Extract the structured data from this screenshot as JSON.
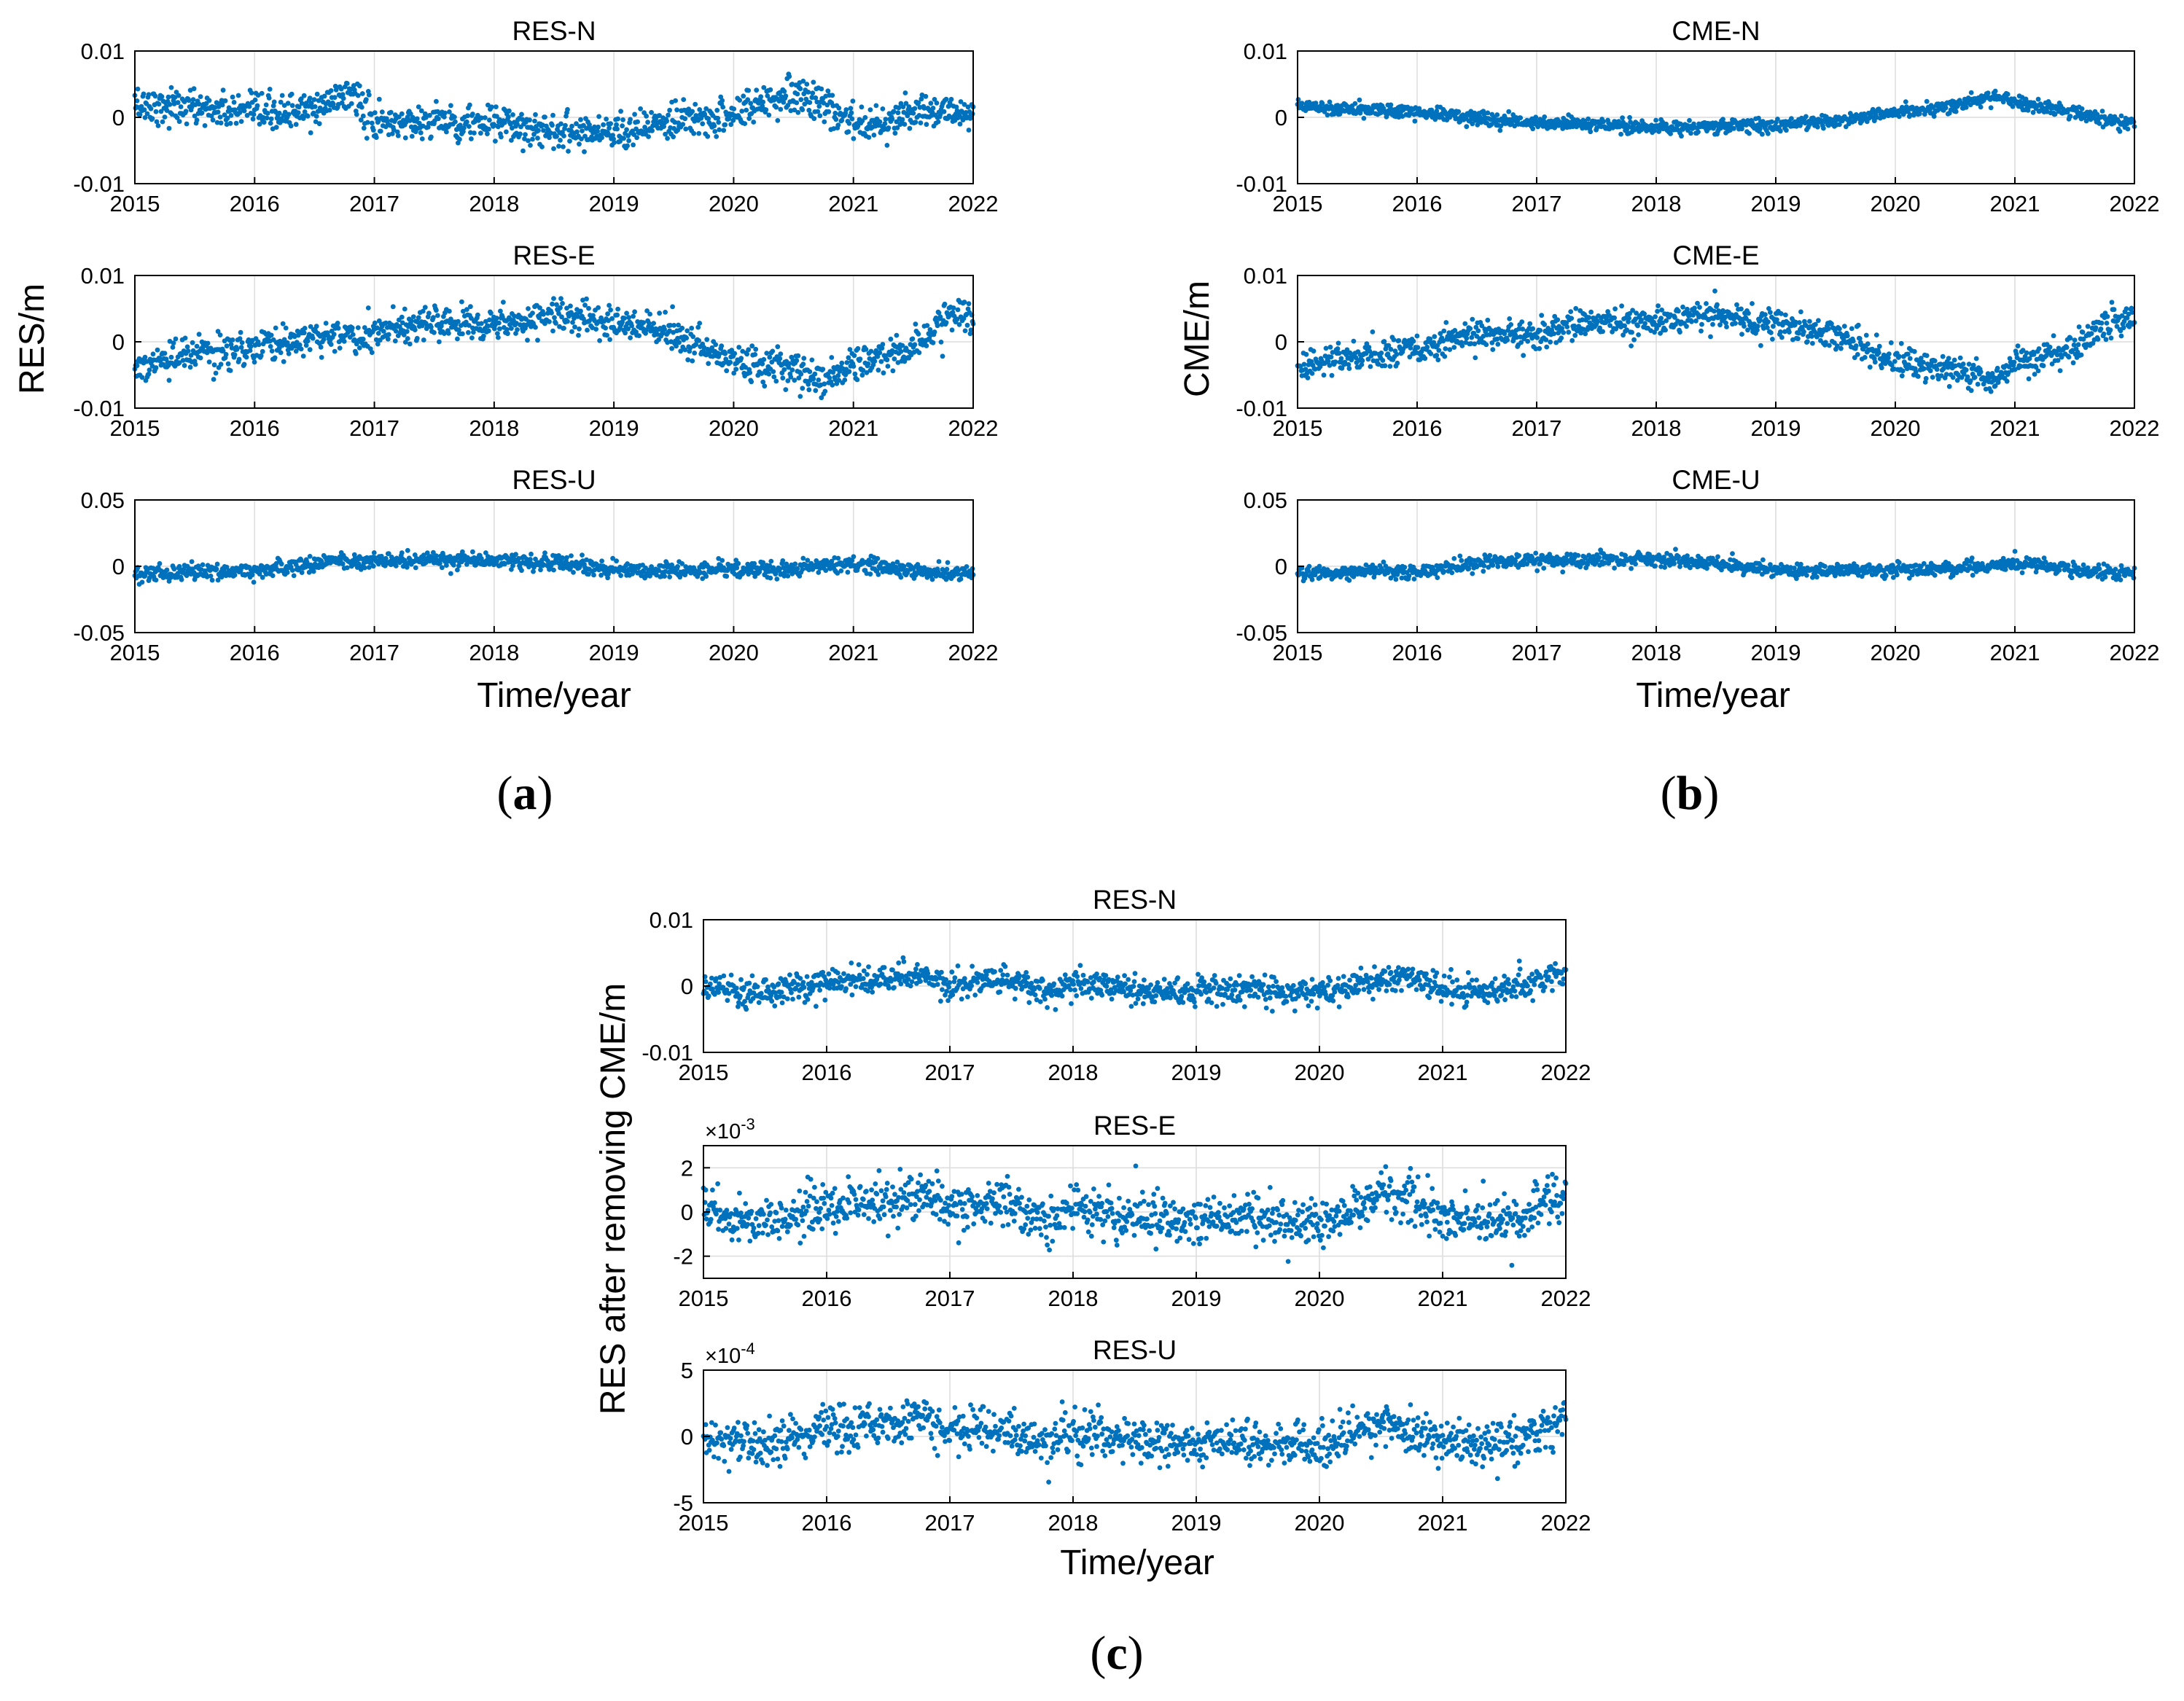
{
  "figure": {
    "panel_labels": {
      "a": {
        "open": "(",
        "letter": "a",
        "close": ")"
      },
      "b": {
        "open": "(",
        "letter": "b",
        "close": ")"
      },
      "c": {
        "open": "(",
        "letter": "c",
        "close": ")"
      }
    },
    "ylabels": {
      "a": "RES/m",
      "b": "CME/m",
      "c": "RES after removing CME/m"
    },
    "xlabel": "Time/year",
    "colors": {
      "points": "#0072BD",
      "grid": "#dcdcdc",
      "axis": "#000000"
    }
  },
  "chart_data": [
    {
      "panel": "a",
      "type": "scatter",
      "title": "RES-N",
      "xlim": [
        2015,
        2022
      ],
      "ylim": [
        -0.01,
        0.01
      ],
      "xticks": [
        "2015",
        "2016",
        "2017",
        "2018",
        "2019",
        "2020",
        "2021",
        "2022"
      ],
      "yticks": [
        "-0.01",
        "0",
        "0.01"
      ],
      "yexponent": "",
      "series": [
        {
          "trend": [
            [
              2015,
              0.002
            ],
            [
              2015.5,
              0.0015
            ],
            [
              2016,
              0.0005
            ],
            [
              2016.5,
              0.001
            ],
            [
              2016.8,
              0.004
            ],
            [
              2017,
              -0.001
            ],
            [
              2017.5,
              -0.0005
            ],
            [
              2018,
              -0.001
            ],
            [
              2018.5,
              -0.002
            ],
            [
              2019,
              -0.002
            ],
            [
              2019.5,
              -0.001
            ],
            [
              2020,
              0.0005
            ],
            [
              2020.5,
              0.004
            ],
            [
              2021,
              -0.001
            ],
            [
              2021.5,
              0.0005
            ],
            [
              2022,
              0.001
            ]
          ],
          "noise": 0.0018
        }
      ]
    },
    {
      "panel": "a",
      "type": "scatter",
      "title": "RES-E",
      "xlim": [
        2015,
        2022
      ],
      "ylim": [
        -0.01,
        0.01
      ],
      "xticks": [
        "2015",
        "2016",
        "2017",
        "2018",
        "2019",
        "2020",
        "2021",
        "2022"
      ],
      "yticks": [
        "-0.01",
        "0",
        "0.01"
      ],
      "yexponent": "",
      "series": [
        {
          "trend": [
            [
              2015,
              -0.004
            ],
            [
              2015.5,
              -0.002
            ],
            [
              2016,
              -0.001
            ],
            [
              2016.5,
              0.001
            ],
            [
              2017,
              0.001
            ],
            [
              2017.5,
              0.003
            ],
            [
              2018,
              0.003
            ],
            [
              2018.5,
              0.004
            ],
            [
              2019,
              0.003
            ],
            [
              2019.5,
              0.001
            ],
            [
              2020,
              -0.003
            ],
            [
              2020.5,
              -0.004
            ],
            [
              2020.8,
              -0.006
            ],
            [
              2021,
              -0.003
            ],
            [
              2021.5,
              -0.001
            ],
            [
              2021.8,
              0.004
            ],
            [
              2022,
              0.004
            ]
          ],
          "noise": 0.0017
        }
      ]
    },
    {
      "panel": "a",
      "type": "scatter",
      "title": "RES-U",
      "xlim": [
        2015,
        2022
      ],
      "ylim": [
        -0.05,
        0.05
      ],
      "xticks": [
        "2015",
        "2016",
        "2017",
        "2018",
        "2019",
        "2020",
        "2021",
        "2022"
      ],
      "yticks": [
        "-0.05",
        "0",
        "0.05"
      ],
      "yexponent": "",
      "series": [
        {
          "trend": [
            [
              2015,
              -0.005
            ],
            [
              2016,
              -0.004
            ],
            [
              2016.6,
              0.004
            ],
            [
              2017,
              0.004
            ],
            [
              2018,
              0.005
            ],
            [
              2018.5,
              0.002
            ],
            [
              2019,
              -0.003
            ],
            [
              2020,
              -0.003
            ],
            [
              2020.5,
              -0.002
            ],
            [
              2021,
              0.002
            ],
            [
              2021.6,
              -0.004
            ],
            [
              2022,
              -0.005
            ]
          ],
          "noise": 0.004
        }
      ]
    },
    {
      "panel": "b",
      "type": "scatter",
      "title": "CME-N",
      "xlim": [
        2015,
        2022
      ],
      "ylim": [
        -0.01,
        0.01
      ],
      "xticks": [
        "2015",
        "2016",
        "2017",
        "2018",
        "2019",
        "2020",
        "2021",
        "2022"
      ],
      "yticks": [
        "-0.01",
        "0",
        "0.01"
      ],
      "yexponent": "",
      "series": [
        {
          "trend": [
            [
              2015,
              0.0018
            ],
            [
              2016,
              0.0008
            ],
            [
              2017,
              -0.0008
            ],
            [
              2018,
              -0.0015
            ],
            [
              2019,
              -0.0012
            ],
            [
              2019.5,
              -0.0005
            ],
            [
              2020,
              0.0008
            ],
            [
              2020.5,
              0.0018
            ],
            [
              2020.8,
              0.003
            ],
            [
              2021.3,
              0.0015
            ],
            [
              2021.8,
              -0.0005
            ],
            [
              2022,
              -0.001
            ]
          ],
          "noise": 0.0007
        }
      ]
    },
    {
      "panel": "b",
      "type": "scatter",
      "title": "CME-E",
      "xlim": [
        2015,
        2022
      ],
      "ylim": [
        -0.01,
        0.01
      ],
      "xticks": [
        "2015",
        "2016",
        "2017",
        "2018",
        "2019",
        "2020",
        "2021",
        "2022"
      ],
      "yticks": [
        "-0.01",
        "0",
        "0.01"
      ],
      "yexponent": "",
      "series": [
        {
          "trend": [
            [
              2015,
              -0.004
            ],
            [
              2015.5,
              -0.002
            ],
            [
              2016,
              -0.001
            ],
            [
              2016.5,
              0.001
            ],
            [
              2017,
              0.001
            ],
            [
              2017.5,
              0.003
            ],
            [
              2018,
              0.003
            ],
            [
              2018.5,
              0.004
            ],
            [
              2019,
              0.003
            ],
            [
              2019.5,
              0.001
            ],
            [
              2020,
              -0.003
            ],
            [
              2020.5,
              -0.004
            ],
            [
              2020.8,
              -0.006
            ],
            [
              2021,
              -0.003
            ],
            [
              2021.5,
              -0.001
            ],
            [
              2021.8,
              0.003
            ],
            [
              2022,
              0.003
            ]
          ],
          "noise": 0.0015
        }
      ]
    },
    {
      "panel": "b",
      "type": "scatter",
      "title": "CME-U",
      "xlim": [
        2015,
        2022
      ],
      "ylim": [
        -0.05,
        0.05
      ],
      "xticks": [
        "2015",
        "2016",
        "2017",
        "2018",
        "2019",
        "2020",
        "2021",
        "2022"
      ],
      "yticks": [
        "-0.05",
        "0",
        "0.05"
      ],
      "yexponent": "",
      "series": [
        {
          "trend": [
            [
              2015,
              -0.005
            ],
            [
              2016,
              -0.004
            ],
            [
              2016.6,
              0.004
            ],
            [
              2017,
              0.004
            ],
            [
              2018,
              0.005
            ],
            [
              2018.5,
              0.002
            ],
            [
              2019,
              -0.003
            ],
            [
              2020,
              -0.003
            ],
            [
              2020.5,
              -0.002
            ],
            [
              2021,
              0.002
            ],
            [
              2021.6,
              -0.004
            ],
            [
              2022,
              -0.005
            ]
          ],
          "noise": 0.0035
        }
      ]
    },
    {
      "panel": "c",
      "type": "scatter",
      "title": "RES-N",
      "xlim": [
        2015,
        2022
      ],
      "ylim": [
        -0.01,
        0.01
      ],
      "xticks": [
        "2015",
        "2016",
        "2017",
        "2018",
        "2019",
        "2020",
        "2021",
        "2022"
      ],
      "yticks": [
        "-0.01",
        "0",
        "0.01"
      ],
      "yexponent": "",
      "series": [
        {
          "trend": [
            [
              2015,
              0.0
            ],
            [
              2015.5,
              -0.001
            ],
            [
              2016,
              0.0005
            ],
            [
              2016.5,
              0.001
            ],
            [
              2016.8,
              0.002
            ],
            [
              2017,
              0.0
            ],
            [
              2017.4,
              0.001
            ],
            [
              2017.8,
              -0.001
            ],
            [
              2018,
              0.0005
            ],
            [
              2018.5,
              -0.0005
            ],
            [
              2019,
              -0.001
            ],
            [
              2019.5,
              -0.0005
            ],
            [
              2020,
              -0.001
            ],
            [
              2020.5,
              0.001
            ],
            [
              2020.7,
              0.002
            ],
            [
              2021,
              -0.001
            ],
            [
              2021.5,
              -0.0005
            ],
            [
              2021.8,
              0.001
            ],
            [
              2022,
              0.002
            ]
          ],
          "noise": 0.0014
        }
      ]
    },
    {
      "panel": "c",
      "type": "scatter",
      "title": "RES-E",
      "xlim": [
        2015,
        2022
      ],
      "ylim": [
        -3,
        3
      ],
      "xticks": [
        "2015",
        "2016",
        "2017",
        "2018",
        "2019",
        "2020",
        "2021",
        "2022"
      ],
      "yticks": [
        "-2",
        "0",
        "2"
      ],
      "yexponent": "-3",
      "series": [
        {
          "trend": [
            [
              2015,
              0.0
            ],
            [
              2015.5,
              -0.6
            ],
            [
              2016,
              0.3
            ],
            [
              2016.5,
              0.5
            ],
            [
              2016.8,
              0.9
            ],
            [
              2017,
              0.0
            ],
            [
              2017.4,
              0.5
            ],
            [
              2017.8,
              -0.5
            ],
            [
              2018,
              0.2
            ],
            [
              2018.5,
              -0.3
            ],
            [
              2019,
              -0.4
            ],
            [
              2019.5,
              -0.3
            ],
            [
              2020,
              -0.5
            ],
            [
              2020.5,
              0.6
            ],
            [
              2020.8,
              0.5
            ],
            [
              2021,
              -0.2
            ],
            [
              2021.5,
              -0.6
            ],
            [
              2021.8,
              0.3
            ],
            [
              2022,
              1.0
            ]
          ],
          "noise": 0.7
        }
      ]
    },
    {
      "panel": "c",
      "type": "scatter",
      "title": "RES-U",
      "xlim": [
        2015,
        2022
      ],
      "ylim": [
        -5,
        5
      ],
      "xticks": [
        "2015",
        "2016",
        "2017",
        "2018",
        "2019",
        "2020",
        "2021",
        "2022"
      ],
      "yticks": [
        "-5",
        "0",
        "5"
      ],
      "yexponent": "-4",
      "series": [
        {
          "trend": [
            [
              2015,
              0.0
            ],
            [
              2015.5,
              -0.6
            ],
            [
              2016,
              0.5
            ],
            [
              2016.5,
              0.8
            ],
            [
              2016.8,
              1.5
            ],
            [
              2017,
              0.2
            ],
            [
              2017.4,
              0.8
            ],
            [
              2017.8,
              -0.6
            ],
            [
              2018,
              0.4
            ],
            [
              2018.5,
              -0.3
            ],
            [
              2019,
              -0.6
            ],
            [
              2019.5,
              -0.4
            ],
            [
              2020,
              -0.8
            ],
            [
              2020.5,
              0.8
            ],
            [
              2020.8,
              0.6
            ],
            [
              2021,
              -0.3
            ],
            [
              2021.5,
              -0.8
            ],
            [
              2021.8,
              0.4
            ],
            [
              2022,
              1.5
            ]
          ],
          "noise": 1.1
        }
      ]
    }
  ]
}
